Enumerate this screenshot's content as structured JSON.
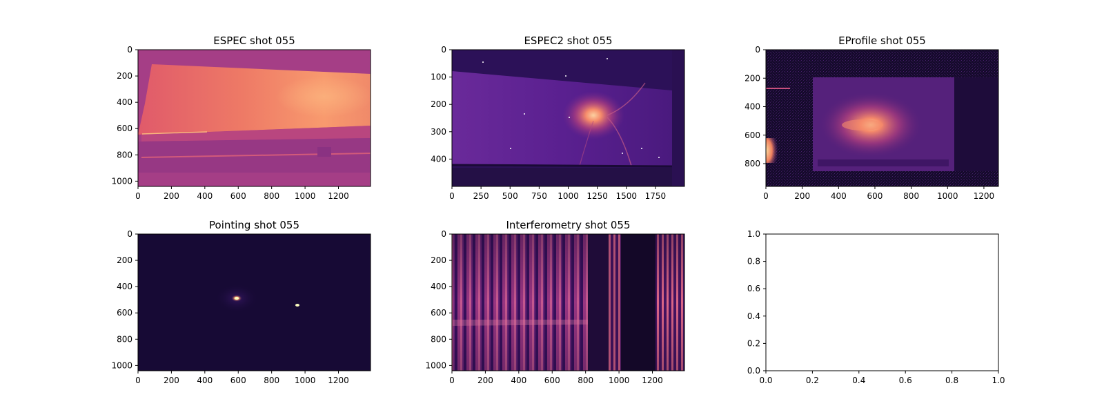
{
  "chart_data": [
    {
      "type": "heatmap",
      "title": "ESPEC shot 055",
      "xlim": [
        0,
        1392
      ],
      "ylim": [
        1040,
        0
      ],
      "xticks": [
        0,
        200,
        400,
        600,
        800,
        1000,
        1200
      ],
      "yticks": [
        0,
        200,
        400,
        600,
        800,
        1000
      ],
      "colormap": "magma",
      "description": "Bright band filling most of frame above a darker lower strip"
    },
    {
      "type": "heatmap",
      "title": "ESPEC2 shot 055",
      "xlim": [
        0,
        2000
      ],
      "ylim": [
        500,
        0
      ],
      "xticks": [
        0,
        250,
        500,
        750,
        1000,
        1250,
        1500,
        1750
      ],
      "yticks": [
        0,
        100,
        200,
        300,
        400
      ],
      "colormap": "magma",
      "description": "Dark purple screen with a bright diffuse spot near x=1250, y=250"
    },
    {
      "type": "heatmap",
      "title": "EProfile shot 055",
      "xlim": [
        0,
        1280
      ],
      "ylim": [
        960,
        0
      ],
      "xticks": [
        0,
        200,
        400,
        600,
        800,
        1000,
        1200
      ],
      "yticks": [
        0,
        200,
        400,
        600,
        800
      ],
      "colormap": "magma",
      "description": "Rectangular glowing screen with a bright spot near x=580, y=530"
    },
    {
      "type": "heatmap",
      "title": "Pointing shot 055",
      "xlim": [
        0,
        1392
      ],
      "ylim": [
        1040,
        0
      ],
      "xticks": [
        0,
        200,
        400,
        600,
        800,
        1000,
        1200
      ],
      "yticks": [
        0,
        200,
        400,
        600,
        800,
        1000
      ],
      "colormap": "magma",
      "description": "Dark frame with a bright spot near x=590, y=490 and a small spot near x=950, y=540"
    },
    {
      "type": "heatmap",
      "title": "Interferometry shot 055",
      "xlim": [
        0,
        1392
      ],
      "ylim": [
        1040,
        0
      ],
      "xticks": [
        0,
        200,
        400,
        600,
        800,
        1000,
        1200
      ],
      "yticks": [
        0,
        200,
        400,
        600,
        800,
        1000
      ],
      "colormap": "magma",
      "description": "Vertical interference fringes with dark vertical bands between x=830 and x=1220"
    },
    {
      "type": "empty",
      "title": "",
      "xlim": [
        0.0,
        1.0
      ],
      "ylim": [
        0.0,
        1.0
      ],
      "xticks": [
        0.0,
        0.2,
        0.4,
        0.6,
        0.8,
        1.0
      ],
      "yticks": [
        0.0,
        0.2,
        0.4,
        0.6,
        0.8,
        1.0
      ],
      "tick_format": 1
    }
  ]
}
